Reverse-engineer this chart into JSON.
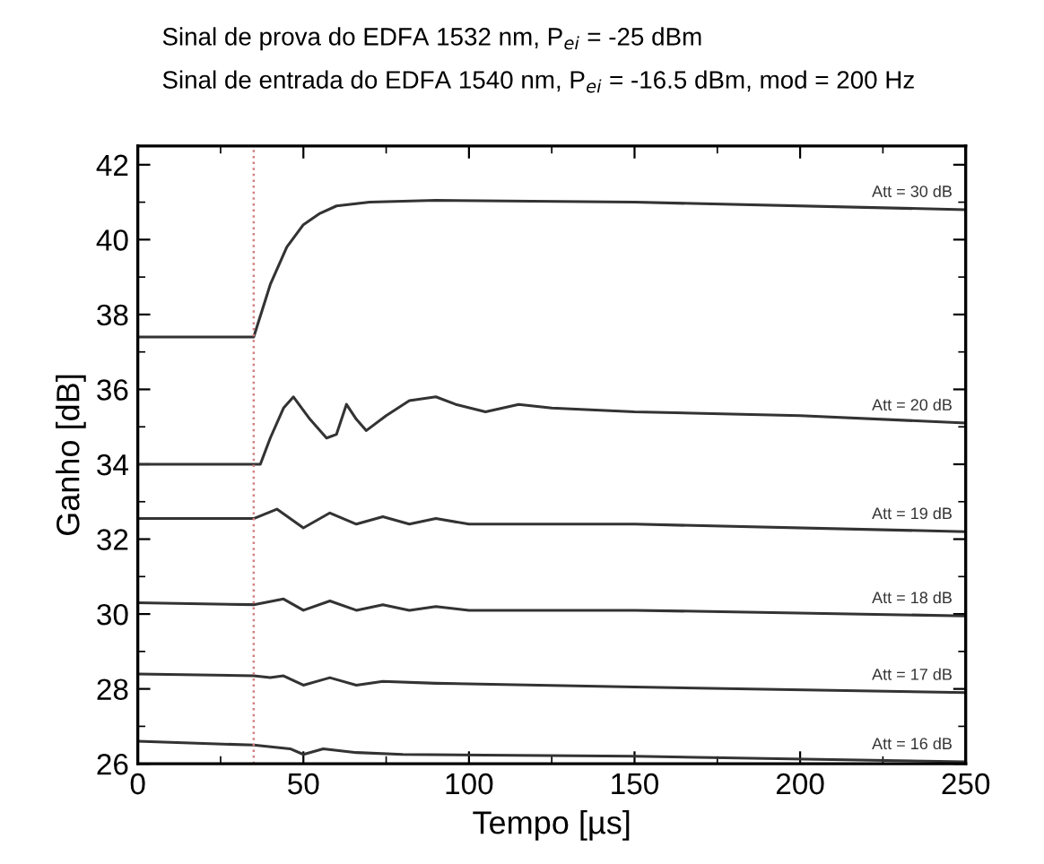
{
  "chart_data": {
    "type": "line",
    "title": "Sinal de prova do EDFA 1532 nm, P$_{ei}$ = -25 dBm",
    "subtitle": "Sinal de entrada do EDFA 1540 nm, P$_{ei}$ = -16.5 dBm, mod = 200 Hz",
    "xlabel": "Tempo [µs]",
    "ylabel": "Ganho [dB]",
    "xlim": [
      0,
      250
    ],
    "xticks": [
      0,
      50,
      100,
      150,
      200,
      250
    ],
    "ylim": [
      26,
      42.5
    ],
    "yticks": [
      26,
      28,
      30,
      32,
      34,
      36,
      38,
      40,
      42
    ],
    "grid": false,
    "legend": false,
    "line_style": "solid",
    "marker": "none",
    "ref_lines": [
      {
        "axis": "x",
        "value": 35,
        "label": null,
        "color": "#d08080",
        "line_style": "dotted"
      }
    ],
    "series": [
      {
        "name": "Att = 30 dB",
        "color": "#333333",
        "x": [
          0,
          35,
          40,
          45,
          50,
          55,
          60,
          70,
          90,
          150,
          250
        ],
        "values": [
          37.4,
          37.4,
          38.8,
          39.8,
          40.4,
          40.7,
          40.9,
          41.0,
          41.05,
          41.0,
          40.8
        ]
      },
      {
        "name": "Att = 20 dB",
        "color": "#333333",
        "x": [
          0,
          37,
          40,
          44,
          47,
          52,
          57,
          60,
          63,
          66,
          69,
          75,
          82,
          90,
          96,
          105,
          115,
          125,
          150,
          200,
          250
        ],
        "values": [
          34.0,
          34.0,
          34.7,
          35.5,
          35.8,
          35.2,
          34.7,
          34.8,
          35.6,
          35.2,
          34.9,
          35.3,
          35.7,
          35.8,
          35.6,
          35.4,
          35.6,
          35.5,
          35.4,
          35.3,
          35.1
        ]
      },
      {
        "name": "Att = 19 dB",
        "color": "#333333",
        "x": [
          0,
          35,
          42,
          50,
          58,
          66,
          74,
          82,
          90,
          100,
          150,
          250
        ],
        "values": [
          32.55,
          32.55,
          32.8,
          32.3,
          32.7,
          32.4,
          32.6,
          32.4,
          32.55,
          32.4,
          32.4,
          32.2
        ]
      },
      {
        "name": "Att = 18 dB",
        "color": "#333333",
        "x": [
          0,
          35,
          44,
          50,
          58,
          66,
          74,
          82,
          90,
          100,
          150,
          250
        ],
        "values": [
          30.3,
          30.25,
          30.4,
          30.1,
          30.35,
          30.1,
          30.25,
          30.1,
          30.2,
          30.1,
          30.1,
          29.95
        ]
      },
      {
        "name": "Att = 17 dB",
        "color": "#333333",
        "x": [
          0,
          35,
          40,
          44,
          50,
          58,
          66,
          74,
          90,
          150,
          250
        ],
        "values": [
          28.4,
          28.35,
          28.3,
          28.35,
          28.1,
          28.3,
          28.1,
          28.2,
          28.15,
          28.05,
          27.9
        ]
      },
      {
        "name": "Att = 16 dB",
        "color": "#333333",
        "x": [
          0,
          35,
          46,
          50,
          56,
          66,
          80,
          150,
          250
        ],
        "values": [
          26.6,
          26.5,
          26.4,
          26.25,
          26.4,
          26.3,
          26.25,
          26.2,
          26.05
        ]
      }
    ]
  }
}
